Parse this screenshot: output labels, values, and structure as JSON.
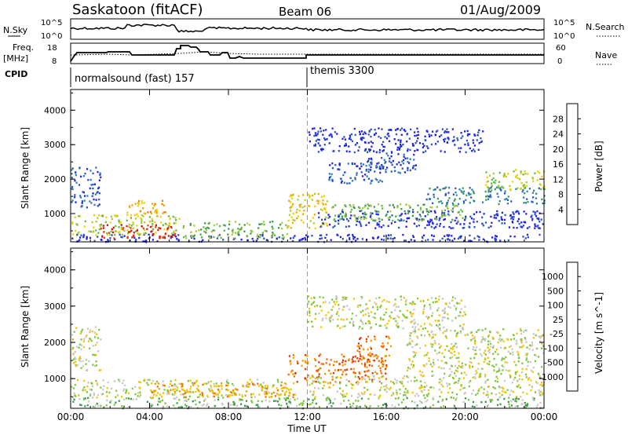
{
  "header": {
    "station": "Saskatoon (fitACF)",
    "beam": "Beam 06",
    "date": "01/Aug/2009"
  },
  "strip_panels": {
    "nsky_label": "N.Sky",
    "nsky_ticks": [
      "10^5",
      "10^0"
    ],
    "nsearch_label": "N.Search",
    "nsearch_ticks": [
      "10^5",
      "10^0"
    ],
    "freq_label_1": "Freq.",
    "freq_label_2": "[MHz]",
    "freq_ticks": [
      "18",
      "8"
    ],
    "nave_label": "Nave",
    "nave_ticks": [
      "60",
      "0"
    ],
    "cpid_label": "CPID",
    "cpid_segments": [
      {
        "label": "normalsound (fast) 157",
        "start_hour": 0
      },
      {
        "label": "themis 3300",
        "start_hour": 12
      }
    ]
  },
  "chart_data": [
    {
      "type": "heatmap",
      "panel": "power",
      "ylabel": "Slant Range [km]",
      "xlabel": "Time UT",
      "x_ticks": [
        "00:00",
        "04:00",
        "08:00",
        "12:00",
        "16:00",
        "20:00",
        "00:00"
      ],
      "x_range_hours": [
        0,
        24
      ],
      "y_ticks": [
        "1000",
        "2000",
        "3000",
        "4000"
      ],
      "y_range_km": [
        180,
        4600
      ],
      "colorbar": {
        "label": "Power [dB]",
        "ticks": [
          "4",
          "8",
          "12",
          "16",
          "20",
          "24",
          "28"
        ],
        "colors": [
          "#1f22e6",
          "#2a55c8",
          "#2d7fb5",
          "#3e9a5c",
          "#64b84a",
          "#a8cc3a",
          "#f0d000",
          "#f5a800",
          "#f07a00",
          "#ee4400",
          "#e01010"
        ]
      },
      "bands": [
        {
          "t0": 0.0,
          "t1": 24.0,
          "r0": 200,
          "r1": 420,
          "c": 0
        },
        {
          "t0": 0.0,
          "t1": 5.5,
          "r0": 400,
          "r1": 1000,
          "c": 5
        },
        {
          "t0": 1.5,
          "t1": 5.3,
          "r0": 300,
          "r1": 700,
          "c": 10
        },
        {
          "t0": 2.8,
          "t1": 4.8,
          "r0": 900,
          "r1": 1400,
          "c": 7
        },
        {
          "t0": 0.0,
          "t1": 1.5,
          "r0": 1200,
          "r1": 2400,
          "c": 1
        },
        {
          "t0": 5.6,
          "t1": 11.0,
          "r0": 300,
          "r1": 800,
          "c": 4
        },
        {
          "t0": 11.0,
          "t1": 13.0,
          "r0": 600,
          "r1": 1600,
          "c": 6
        },
        {
          "t0": 12.5,
          "t1": 24.0,
          "r0": 600,
          "r1": 1100,
          "c": 0
        },
        {
          "t0": 13.0,
          "t1": 20.0,
          "r0": 800,
          "r1": 1300,
          "c": 4
        },
        {
          "t0": 18.0,
          "t1": 24.0,
          "r0": 1300,
          "r1": 1800,
          "c": 2
        },
        {
          "t0": 21.0,
          "t1": 24.0,
          "r0": 1700,
          "r1": 2300,
          "c": 5
        },
        {
          "t0": 13.0,
          "t1": 16.0,
          "r0": 1900,
          "r1": 2500,
          "c": 1
        },
        {
          "t0": 15.0,
          "t1": 17.5,
          "r0": 2200,
          "r1": 2900,
          "c": 1
        },
        {
          "t0": 12.0,
          "t1": 21.0,
          "r0": 2800,
          "r1": 3500,
          "c": 0
        }
      ]
    },
    {
      "type": "heatmap",
      "panel": "velocity",
      "ylabel": "Slant Range [km]",
      "xlabel": "Time UT",
      "x_ticks": [
        "00:00",
        "04:00",
        "08:00",
        "12:00",
        "16:00",
        "20:00",
        "00:00"
      ],
      "x_range_hours": [
        0,
        24
      ],
      "y_ticks": [
        "1000",
        "2000",
        "3000",
        "4000"
      ],
      "y_range_km": [
        180,
        4600
      ],
      "colorbar": {
        "label": "Velocity [m s^-1]",
        "ticks": [
          "1000",
          "500",
          "100",
          "25",
          "-25",
          "-100",
          "-500",
          "-1000"
        ],
        "colors": [
          "#2233cc",
          "#2b6fa8",
          "#3c9a4f",
          "#7cc83a",
          "#c8c8c8",
          "#f5c400",
          "#f59a00",
          "#f07000",
          "#e83000"
        ]
      },
      "bands": [
        {
          "t0": 0.0,
          "t1": 24.0,
          "r0": 200,
          "r1": 500,
          "c": 3
        },
        {
          "t0": 0.0,
          "t1": 11.0,
          "r0": 500,
          "r1": 1000,
          "c": 4
        },
        {
          "t0": 0.0,
          "t1": 1.5,
          "r0": 1200,
          "r1": 2500,
          "c": 4
        },
        {
          "t0": 4.0,
          "t1": 11.5,
          "r0": 500,
          "r1": 900,
          "c": 6
        },
        {
          "t0": 11.0,
          "t1": 16.0,
          "r0": 900,
          "r1": 1700,
          "c": 7
        },
        {
          "t0": 14.5,
          "t1": 16.2,
          "r0": 1500,
          "r1": 2200,
          "c": 7
        },
        {
          "t0": 12.0,
          "t1": 24.0,
          "r0": 500,
          "r1": 1100,
          "c": 4
        },
        {
          "t0": 17.0,
          "t1": 24.0,
          "r0": 1100,
          "r1": 2400,
          "c": 4
        },
        {
          "t0": 12.0,
          "t1": 20.0,
          "r0": 2400,
          "r1": 3300,
          "c": 4
        }
      ]
    }
  ]
}
